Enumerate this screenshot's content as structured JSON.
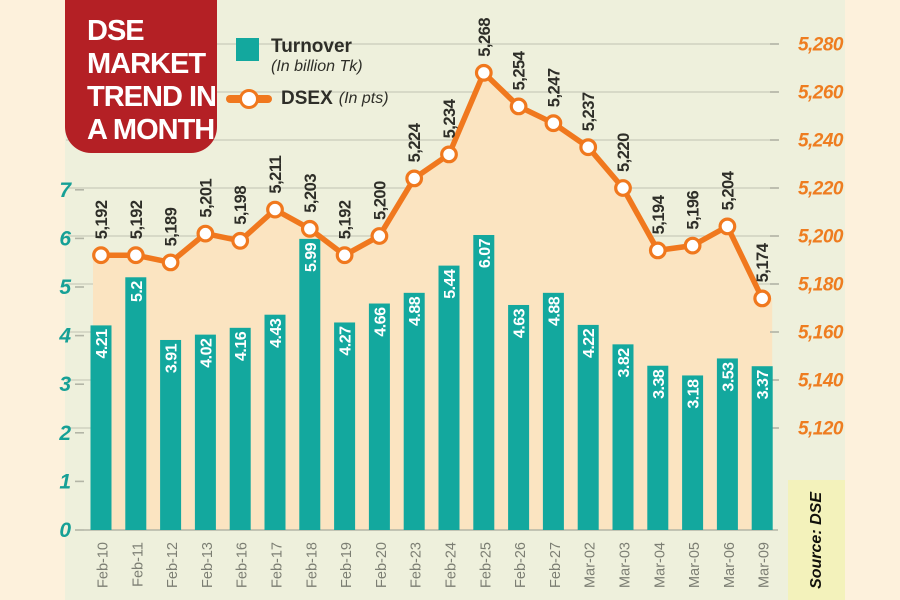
{
  "title": {
    "lines": [
      "DSE",
      "MARKET",
      "TREND IN",
      "A MONTH"
    ]
  },
  "legend": {
    "turnover_label": "Turnover",
    "turnover_sub": "(In billion Tk)",
    "dsex_label": "DSEX",
    "dsex_sub": "(In pts)"
  },
  "colors": {
    "page_bg": "#fdf1dc",
    "panel_bg": "#eef0dc",
    "title_bg": "#b42025",
    "title_text": "#ffffff",
    "bar": "#13a89e",
    "bar_label": "#ffffff",
    "line": "#f0781e",
    "area_fill": "#fbe4c1",
    "marker_fill": "#ffffff",
    "grid": "#c9cbba",
    "axis_line": "#b3b5a6",
    "left_axis_text": "#16a096",
    "right_axis_text": "#ee7d20",
    "x_label": "#7c7e73",
    "point_label": "#2e2e28",
    "source_bg": "#f3f2bb",
    "source_text": "#11110b"
  },
  "chart_data": {
    "type": "combo-bar-line",
    "title": "DSE MARKET TREND IN A MONTH",
    "categories": [
      "Feb-10",
      "Feb-11",
      "Feb-12",
      "Feb-13",
      "Feb-16",
      "Feb-17",
      "Feb-18",
      "Feb-19",
      "Feb-20",
      "Feb-23",
      "Feb-24",
      "Feb-25",
      "Feb-26",
      "Feb-27",
      "Mar-02",
      "Mar-03",
      "Mar-04",
      "Mar-05",
      "Mar-06",
      "Mar-09"
    ],
    "series": [
      {
        "name": "Turnover",
        "unit": "In billion Tk",
        "type": "bar",
        "axis": "left",
        "values": [
          4.21,
          5.2,
          3.91,
          4.02,
          4.16,
          4.43,
          5.99,
          4.27,
          4.66,
          4.88,
          5.44,
          6.07,
          4.63,
          4.88,
          4.22,
          3.82,
          3.38,
          3.18,
          3.53,
          3.37
        ]
      },
      {
        "name": "DSEX",
        "unit": "In pts",
        "type": "line",
        "axis": "right",
        "values": [
          5192,
          5192,
          5189,
          5201,
          5198,
          5211,
          5203,
          5192,
          5200,
          5224,
          5234,
          5268,
          5254,
          5247,
          5237,
          5220,
          5194,
          5196,
          5204,
          5174
        ]
      }
    ],
    "left_axis": {
      "min": 0,
      "max": 7,
      "tick_step": 1
    },
    "right_axis": {
      "min": 5120,
      "max": 5280,
      "tick_step": 20
    },
    "grid": true,
    "legend_position": "top-left",
    "source": "Source: DSE"
  }
}
